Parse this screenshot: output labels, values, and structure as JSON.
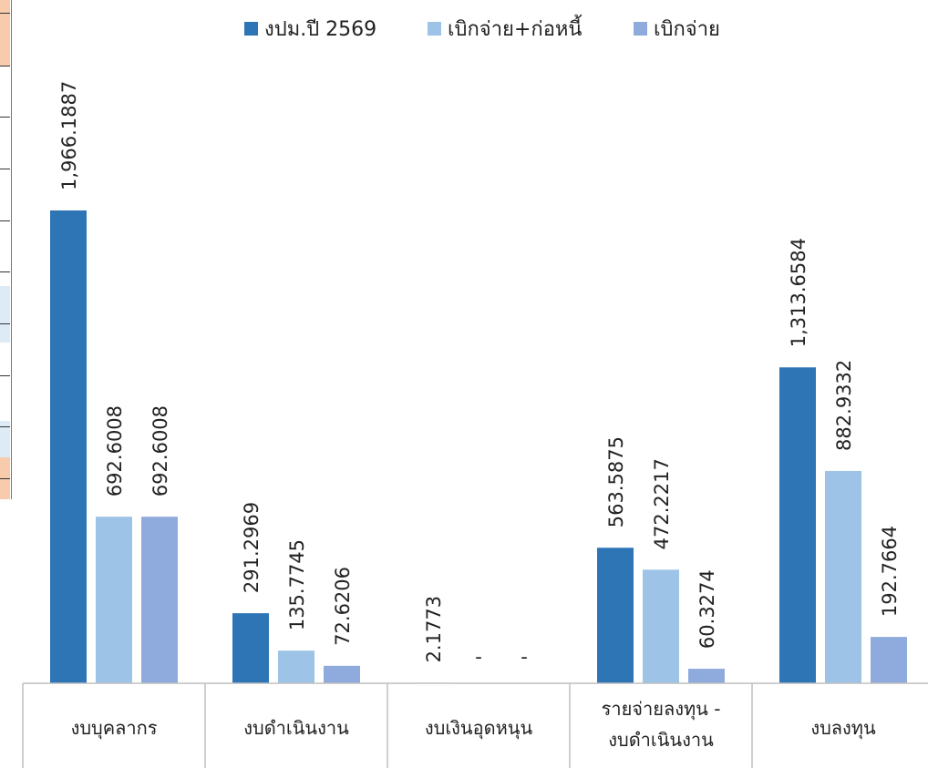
{
  "chart_data": {
    "type": "bar",
    "title": "",
    "xlabel": "",
    "ylabel": "",
    "categories": [
      [
        "งบบุคลากร"
      ],
      [
        "งบดำเนินงาน"
      ],
      [
        "งบเงินอุดหนุน"
      ],
      [
        "รายจ่ายลงทุน -",
        "งบดำเนินงาน"
      ],
      [
        "งบลงทุน"
      ]
    ],
    "series": [
      {
        "name": "งปม.ปี 2569",
        "color": "#2E75B6",
        "values": [
          1966.1887,
          291.2969,
          2.1773,
          563.5875,
          1313.6584
        ],
        "labels": [
          "1,966.1887",
          "291.2969",
          "2.1773",
          "563.5875",
          "1,313.6584"
        ]
      },
      {
        "name": "เบิกจ่าย+ก่อหนี้",
        "color": "#9DC3E6",
        "values": [
          692.6008,
          135.7745,
          0,
          472.2217,
          882.9332
        ],
        "labels": [
          "692.6008",
          "135.7745",
          "-",
          "472.2217",
          "882.9332"
        ]
      },
      {
        "name": "เบิกจ่าย",
        "color": "#8FAADC",
        "values": [
          692.6008,
          72.6206,
          0,
          60.3274,
          192.7664
        ],
        "labels": [
          "692.6008",
          "72.6206",
          "-",
          "60.3274",
          "192.7664"
        ]
      }
    ],
    "legend_position": "top",
    "grid": false
  }
}
